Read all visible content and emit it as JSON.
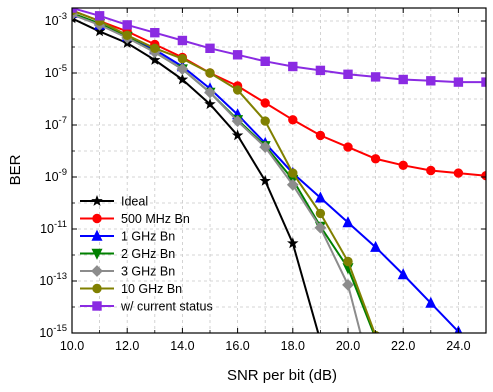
{
  "chart_data": {
    "type": "line",
    "xlabel": "SNR per bit (dB)",
    "ylabel": "BER",
    "xlim": [
      10,
      25
    ],
    "ylim_exponent": [
      -15,
      -2.5
    ],
    "y_scale": "log",
    "grid": true,
    "grid_style": "dashed",
    "legend_position": "bottom-left",
    "x_ticks": [
      10,
      12,
      14,
      16,
      18,
      20,
      22,
      24
    ],
    "x_tick_labels": [
      "10.0",
      "12.0",
      "14.0",
      "16.0",
      "18.0",
      "20.0",
      "22.0",
      "24.0"
    ],
    "y_tick_exponents": [
      -15,
      -13,
      -11,
      -9,
      -7,
      -5,
      -3
    ],
    "y_tick_base": "10",
    "series": [
      {
        "name": "Ideal",
        "color": "#000000",
        "marker": "star",
        "x": [
          10,
          11,
          12,
          13,
          14,
          15,
          16,
          17,
          18,
          19
        ],
        "y_exp": [
          -2.9,
          -3.4,
          -3.85,
          -4.5,
          -5.25,
          -6.2,
          -7.4,
          -9.15,
          -11.55,
          -15.3
        ]
      },
      {
        "name": "500 MHz Bn",
        "color": "#ff0000",
        "marker": "circle",
        "x": [
          10,
          11,
          12,
          13,
          14,
          15,
          16,
          17,
          18,
          19,
          20,
          21,
          22,
          23,
          24,
          25
        ],
        "y_exp": [
          -2.6,
          -3.0,
          -3.4,
          -3.9,
          -4.4,
          -5.0,
          -5.5,
          -6.15,
          -6.8,
          -7.4,
          -7.85,
          -8.3,
          -8.55,
          -8.75,
          -8.85,
          -8.95
        ]
      },
      {
        "name": "1 GHz Bn",
        "color": "#0000ff",
        "marker": "triangle-up",
        "x": [
          10,
          11,
          12,
          13,
          14,
          15,
          16,
          17,
          18,
          19,
          20,
          21,
          22,
          23,
          24
        ],
        "y_exp": [
          -2.7,
          -3.15,
          -3.6,
          -4.1,
          -4.75,
          -5.6,
          -6.6,
          -7.7,
          -8.85,
          -9.8,
          -10.75,
          -11.7,
          -12.75,
          -13.85,
          -14.95
        ]
      },
      {
        "name": "2 GHz Bn",
        "color": "#008000",
        "marker": "triangle-down",
        "x": [
          10,
          11,
          12,
          13,
          14,
          15,
          16,
          17,
          18,
          19,
          20,
          21
        ],
        "y_exp": [
          -2.7,
          -3.1,
          -3.6,
          -4.2,
          -4.85,
          -5.75,
          -6.8,
          -7.8,
          -9.1,
          -10.9,
          -12.5,
          -15.2
        ]
      },
      {
        "name": "3 GHz Bn",
        "color": "#8c8c8c",
        "marker": "diamond",
        "x": [
          10,
          11,
          12,
          13,
          14,
          15,
          16,
          17,
          18,
          19,
          20,
          20.5
        ],
        "y_exp": [
          -2.75,
          -3.15,
          -3.65,
          -4.2,
          -4.85,
          -5.75,
          -6.85,
          -7.85,
          -9.3,
          -10.95,
          -13.15,
          -15.2
        ]
      },
      {
        "name": "10 GHz Bn",
        "color": "#808000",
        "marker": "circle",
        "x": [
          10,
          11,
          12,
          13,
          14,
          15,
          16,
          17,
          18,
          19,
          20,
          21
        ],
        "y_exp": [
          -2.6,
          -3.0,
          -3.55,
          -4.05,
          -4.45,
          -5.0,
          -5.65,
          -6.85,
          -8.85,
          -10.4,
          -12.25,
          -15.1
        ]
      },
      {
        "name": "w/ current status",
        "color": "#8a2be2",
        "marker": "square",
        "x": [
          10,
          11,
          12,
          13,
          14,
          15,
          16,
          17,
          18,
          19,
          20,
          21,
          22,
          23,
          24,
          25
        ],
        "y_exp": [
          -2.5,
          -2.8,
          -3.15,
          -3.45,
          -3.75,
          -4.05,
          -4.3,
          -4.55,
          -4.75,
          -4.9,
          -5.05,
          -5.15,
          -5.25,
          -5.3,
          -5.35,
          -5.35
        ]
      }
    ]
  }
}
